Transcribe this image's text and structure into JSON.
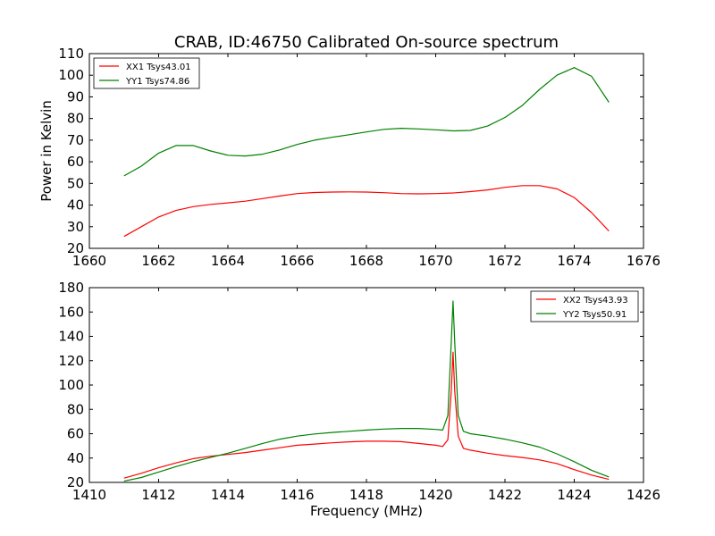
{
  "chart_data": [
    {
      "type": "line",
      "title": "CRAB, ID:46750 Calibrated On-source spectrum",
      "xlabel": "",
      "ylabel": "Power in Kelvin",
      "xlim": [
        1660,
        1676
      ],
      "ylim": [
        20,
        110
      ],
      "xticks": [
        "1660",
        "1662",
        "1664",
        "1666",
        "1668",
        "1670",
        "1672",
        "1674",
        "1676"
      ],
      "yticks": [
        "20",
        "30",
        "40",
        "50",
        "60",
        "70",
        "80",
        "90",
        "100",
        "110"
      ],
      "grid": false,
      "legend_position": "top-left",
      "series": [
        {
          "name": "XX1 Tsys43.01",
          "color": "#ff0000",
          "x": [
            1661.0,
            1661.5,
            1662.0,
            1662.5,
            1663.0,
            1663.5,
            1664.0,
            1664.5,
            1665.0,
            1665.5,
            1666.0,
            1666.5,
            1667.0,
            1667.5,
            1668.0,
            1668.5,
            1669.0,
            1669.5,
            1670.0,
            1670.5,
            1671.0,
            1671.5,
            1672.0,
            1672.5,
            1673.0,
            1673.5,
            1674.0,
            1674.5,
            1675.0
          ],
          "y": [
            25.5,
            30,
            34.5,
            37.5,
            39.3,
            40.3,
            41,
            41.8,
            43,
            44.2,
            45.3,
            45.8,
            46,
            46.1,
            46,
            45.7,
            45.3,
            45.2,
            45.3,
            45.6,
            46.2,
            47,
            48.2,
            49,
            49,
            47.5,
            43.5,
            36.5,
            28
          ]
        },
        {
          "name": "YY1 Tsys74.86",
          "color": "#008000",
          "x": [
            1661.0,
            1661.5,
            1662.0,
            1662.5,
            1663.0,
            1663.5,
            1664.0,
            1664.5,
            1665.0,
            1665.5,
            1666.0,
            1666.5,
            1667.0,
            1667.5,
            1668.0,
            1668.5,
            1669.0,
            1669.5,
            1670.0,
            1670.5,
            1671.0,
            1671.5,
            1672.0,
            1672.5,
            1673.0,
            1673.5,
            1674.0,
            1674.5,
            1675.0
          ],
          "y": [
            53.5,
            58,
            64,
            67.5,
            67.5,
            65,
            63,
            62.7,
            63.5,
            65.5,
            68,
            70,
            71.3,
            72.5,
            73.8,
            75,
            75.5,
            75.2,
            74.8,
            74.3,
            74.5,
            76.5,
            80.5,
            86,
            93.5,
            100,
            103.5,
            99.5,
            87.5
          ]
        }
      ]
    },
    {
      "type": "line",
      "title": "",
      "xlabel": "Frequency (MHz)",
      "ylabel": "",
      "xlim": [
        1410,
        1426
      ],
      "ylim": [
        20,
        180
      ],
      "xticks": [
        "1410",
        "1412",
        "1414",
        "1416",
        "1418",
        "1420",
        "1422",
        "1424",
        "1426"
      ],
      "yticks": [
        "20",
        "40",
        "60",
        "80",
        "100",
        "120",
        "140",
        "160",
        "180"
      ],
      "grid": false,
      "legend_position": "top-right",
      "series": [
        {
          "name": "XX2 Tsys43.93",
          "color": "#ff0000",
          "x": [
            1411.0,
            1411.5,
            1412.0,
            1412.5,
            1413.0,
            1413.5,
            1414.0,
            1414.5,
            1415.0,
            1415.5,
            1416.0,
            1416.5,
            1417.0,
            1417.5,
            1418.0,
            1418.5,
            1419.0,
            1419.5,
            1420.0,
            1420.2,
            1420.35,
            1420.45,
            1420.5,
            1420.55,
            1420.65,
            1420.8,
            1421.0,
            1421.5,
            1422.0,
            1422.5,
            1423.0,
            1423.5,
            1424.0,
            1424.5,
            1425.0
          ],
          "y": [
            23.5,
            27.5,
            32,
            36,
            39.5,
            41.5,
            43,
            44.5,
            46.5,
            48.5,
            50.5,
            51.5,
            52.5,
            53.3,
            53.8,
            53.8,
            53.5,
            52,
            50.5,
            49.5,
            55,
            95,
            127,
            95,
            58,
            48,
            46.5,
            44,
            42,
            40.5,
            38.5,
            35.5,
            30.5,
            26,
            22.5
          ]
        },
        {
          "name": "YY2 Tsys50.91",
          "color": "#008000",
          "x": [
            1411.0,
            1411.5,
            1412.0,
            1412.5,
            1413.0,
            1413.5,
            1414.0,
            1414.5,
            1415.0,
            1415.5,
            1416.0,
            1416.5,
            1417.0,
            1417.5,
            1418.0,
            1418.5,
            1419.0,
            1419.5,
            1420.0,
            1420.2,
            1420.35,
            1420.45,
            1420.5,
            1420.55,
            1420.65,
            1420.8,
            1421.0,
            1421.5,
            1422.0,
            1422.5,
            1423.0,
            1423.5,
            1424.0,
            1424.5,
            1425.0
          ],
          "y": [
            21,
            24,
            28.5,
            33,
            37,
            40.5,
            44,
            48,
            52,
            55.5,
            58,
            59.8,
            61,
            62,
            63,
            63.8,
            64.3,
            64.3,
            63.5,
            63,
            75,
            135,
            169,
            135,
            75,
            62,
            60,
            58,
            55.5,
            52.5,
            49,
            43.5,
            37,
            30,
            24.5
          ]
        }
      ]
    }
  ]
}
